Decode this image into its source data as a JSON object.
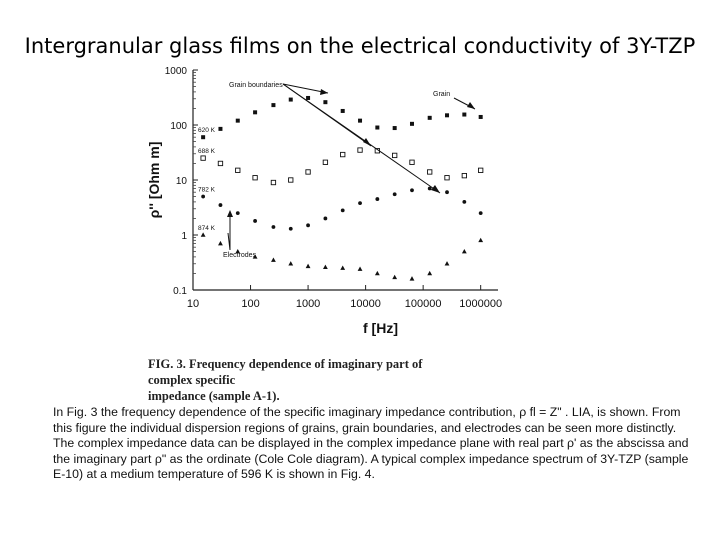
{
  "page": {
    "title": "Intergranular glass films on the electrical conductivity of 3Y-TZP",
    "caption_line1": "FIG. 3.  Frequency dependence of imaginary part of complex specific",
    "caption_line2": "impedance  (sample A-1).",
    "body_text": "In Fig. 3 the frequency dependence of the specific imaginary impedance contribution, ρ fl = Z\" . LIA, is shown. From this figure the individual dispersion regions of grains, grain boundaries, and electrodes can be seen more distinctly. The complex impedance data can be displayed in the complex impedance plane with real part ρ' as the abscissa and the imaginary part  ρ\" as the ordinate (Cole Cole diagram). A typical complex impedance spectrum of 3Y-TZP (sample E-10) at a medium temperature of 596 K is shown in Fig. 4."
  },
  "chart_data": {
    "type": "scatter",
    "xlabel": "f [Hz]",
    "ylabel": "ρ'' [Ohm m]",
    "xscale": "log",
    "yscale": "log",
    "xlim": [
      10,
      2000000
    ],
    "ylim": [
      0.1,
      1000
    ],
    "xticks": [
      "10",
      "100",
      "1000",
      "10000",
      "100000",
      "1000000"
    ],
    "yticks": [
      "1000",
      "100",
      "10",
      "1",
      "0.1"
    ],
    "annotations": [
      "Grain boundaries",
      "Grain",
      "Electrodes"
    ],
    "series": [
      {
        "name": "620 K",
        "marker": "filled-square",
        "x": [
          15,
          30,
          60,
          120,
          250,
          500,
          1000,
          2000,
          4000,
          8000,
          16000,
          32000,
          64000,
          130000,
          260000,
          520000,
          1000000
        ],
        "y": [
          60,
          85,
          120,
          170,
          230,
          290,
          310,
          260,
          180,
          120,
          90,
          88,
          105,
          135,
          150,
          155,
          140
        ]
      },
      {
        "name": "688 K",
        "marker": "open-square",
        "x": [
          15,
          30,
          60,
          120,
          250,
          500,
          1000,
          2000,
          4000,
          8000,
          16000,
          32000,
          64000,
          130000,
          260000,
          520000,
          1000000
        ],
        "y": [
          25,
          20,
          15,
          11,
          9,
          10,
          14,
          21,
          29,
          35,
          34,
          28,
          21,
          14,
          11,
          12,
          15
        ]
      },
      {
        "name": "782 K",
        "marker": "filled-dot",
        "x": [
          15,
          30,
          60,
          120,
          250,
          500,
          1000,
          2000,
          4000,
          8000,
          16000,
          32000,
          64000,
          130000,
          260000,
          520000,
          1000000
        ],
        "y": [
          5,
          3.5,
          2.5,
          1.8,
          1.4,
          1.3,
          1.5,
          2,
          2.8,
          3.8,
          4.5,
          5.5,
          6.5,
          7,
          6,
          4,
          2.5
        ]
      },
      {
        "name": "874 K",
        "marker": "triangle",
        "x": [
          15,
          30,
          60,
          120,
          250,
          500,
          1000,
          2000,
          4000,
          8000,
          16000,
          32000,
          64000,
          130000,
          260000,
          520000,
          1000000
        ],
        "y": [
          1,
          0.7,
          0.5,
          0.4,
          0.35,
          0.3,
          0.27,
          0.26,
          0.25,
          0.24,
          0.2,
          0.17,
          0.16,
          0.2,
          0.3,
          0.5,
          0.8
        ]
      }
    ]
  }
}
